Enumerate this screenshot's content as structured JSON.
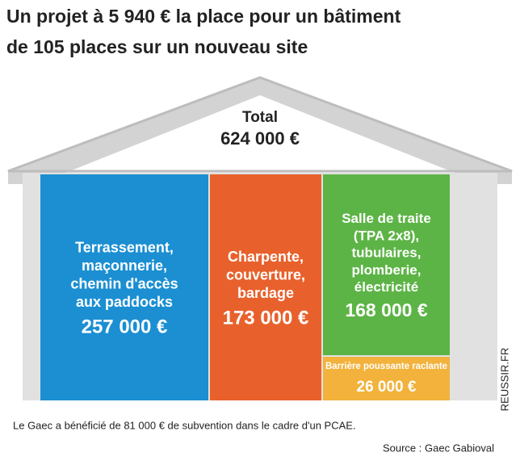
{
  "chart_data": {
    "type": "treemap",
    "title": [
      "Un projet à 5 940 € la place pour un bâtiment",
      "de 105 places sur un nouveau site"
    ],
    "total": {
      "label": "Total",
      "value": 624000,
      "value_label": "624 000 €"
    },
    "categories": [
      [
        "Terrassement,",
        "maçonnerie,",
        "chemin d'accès",
        "aux paddocks"
      ],
      [
        "Charpente,",
        "couverture,",
        "bardage"
      ],
      [
        "Salle de traite",
        "(TPA 2x8),",
        "tubulaires,",
        "plomberie,",
        "électricité"
      ],
      [
        "Barrière poussante raclante"
      ]
    ],
    "values": [
      257000,
      173000,
      168000,
      26000
    ],
    "value_labels": [
      "257 000 €",
      "173 000 €",
      "168 000 €",
      "26 000 €"
    ],
    "colors": [
      "#1b8fd2",
      "#e8612c",
      "#5db446",
      "#f2b23c"
    ],
    "note": "Le Gaec a bénéficié de 81 000 € de subvention dans le cadre d'un PCAE.",
    "source": "Source : Gaec Gabioval",
    "credit": "REUSSIR.FR"
  }
}
